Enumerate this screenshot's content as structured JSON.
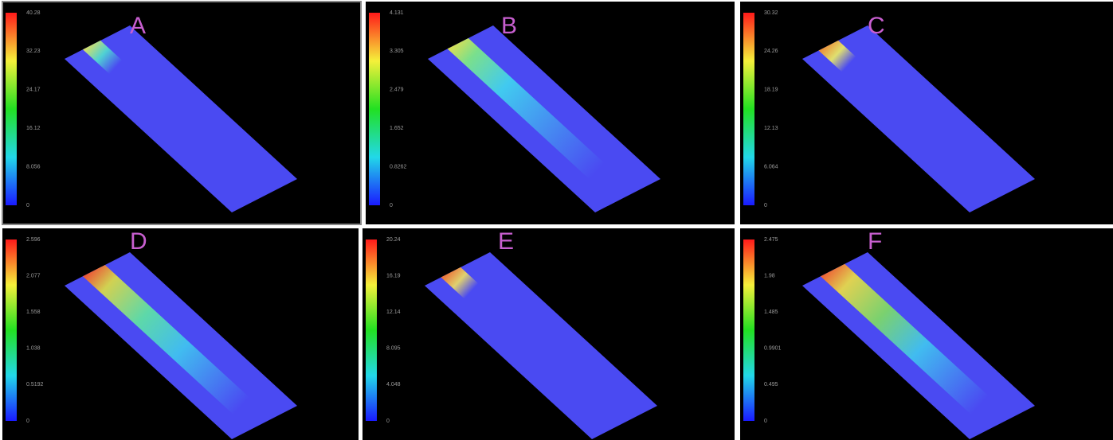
{
  "panels": [
    {
      "label": "A",
      "ticks": [
        "40.28",
        "32.23",
        "24.17",
        "16.12",
        "8.056",
        "0"
      ]
    },
    {
      "label": "B",
      "ticks": [
        "4.131",
        "3.305",
        "2.479",
        "1.652",
        "0.8262",
        "0"
      ]
    },
    {
      "label": "C",
      "ticks": [
        "30.32",
        "24.26",
        "18.19",
        "12.13",
        "6.064",
        "0"
      ]
    },
    {
      "label": "D",
      "ticks": [
        "2.596",
        "2.077",
        "1.558",
        "1.038",
        "0.5192",
        "0"
      ]
    },
    {
      "label": "E",
      "ticks": [
        "20.24",
        "16.19",
        "12.14",
        "8.095",
        "4.048",
        "0"
      ]
    },
    {
      "label": "F",
      "ticks": [
        "2.475",
        "1.98",
        "1.485",
        "0.9901",
        "0.495",
        "0"
      ]
    }
  ]
}
